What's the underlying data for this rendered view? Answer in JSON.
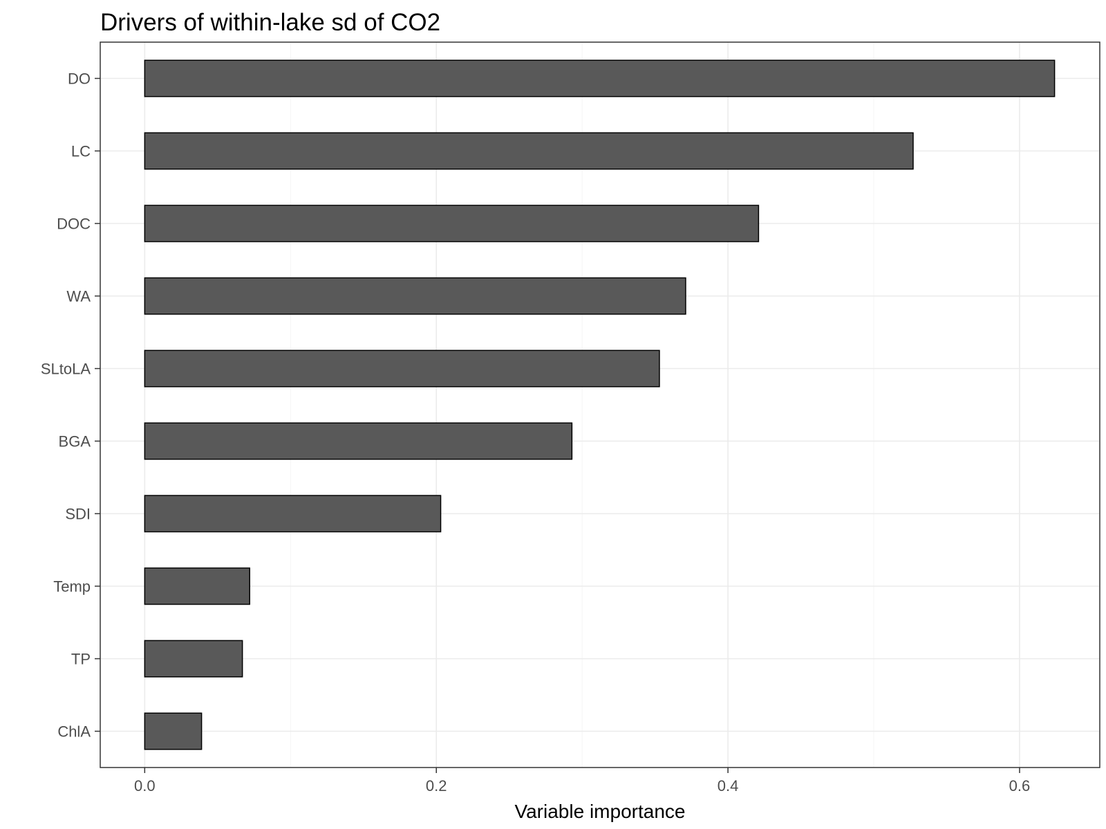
{
  "chart_data": {
    "type": "bar",
    "orientation": "horizontal",
    "title": "Drivers of within-lake sd of CO2",
    "xlabel": "Variable importance",
    "ylabel": "",
    "categories": [
      "DO",
      "LC",
      "DOC",
      "WA",
      "SLtoLA",
      "BGA",
      "SDI",
      "Temp",
      "TP",
      "ChlA"
    ],
    "values": [
      0.624,
      0.527,
      0.421,
      0.371,
      0.353,
      0.293,
      0.203,
      0.072,
      0.067,
      0.039
    ],
    "xlim": [
      -0.0305,
      0.655
    ],
    "xticks": [
      0.0,
      0.2,
      0.4,
      0.6
    ],
    "xtick_labels": [
      "0.0",
      "0.2",
      "0.4",
      "0.6"
    ],
    "grid": true,
    "legend": "none",
    "colors": {
      "bar_fill": "#595959",
      "bar_stroke": "#000000",
      "grid_major": "#ebebeb",
      "grid_minor": "#f5f5f5",
      "panel_border": "#333333",
      "tick_text": "#4d4d4d"
    }
  }
}
